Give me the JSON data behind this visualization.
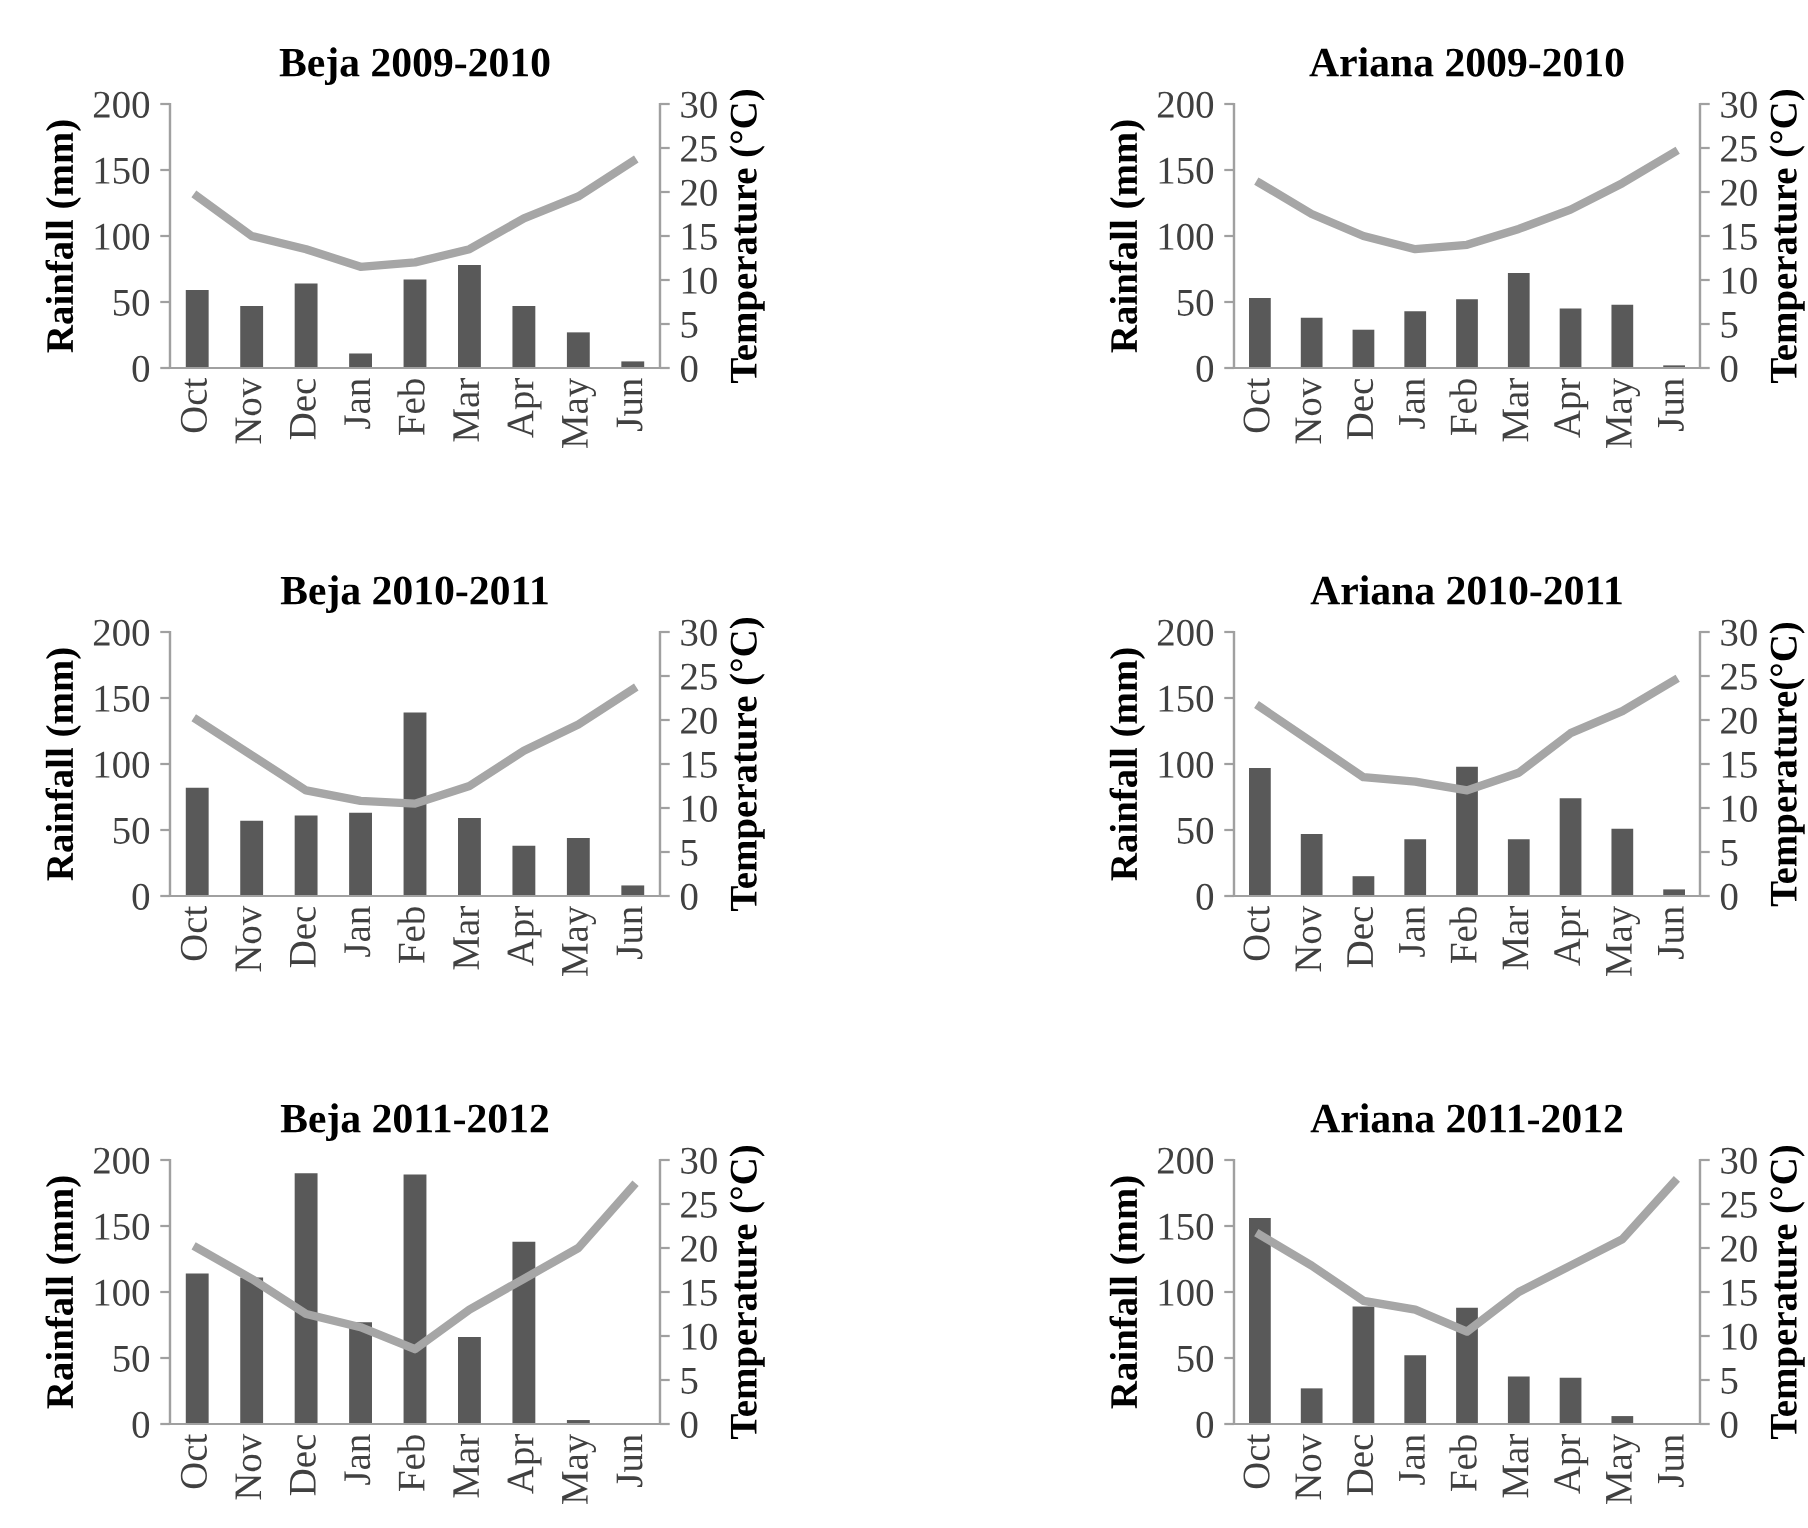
{
  "chart_data": [
    {
      "type": "bar",
      "title": "Beja 2009-2010",
      "ylabel": "Rainfall (mm)",
      "y2label": "Temperature (°C)",
      "categories": [
        "Oct",
        "Nov",
        "Dec",
        "Jan",
        "Feb",
        "Mar",
        "Apr",
        "May",
        "Jun"
      ],
      "ylim": [
        0,
        200
      ],
      "yticks": [
        0,
        50,
        100,
        150,
        200
      ],
      "y2lim": [
        0,
        30
      ],
      "y2ticks": [
        0,
        5,
        10,
        15,
        20,
        25,
        30
      ],
      "series": [
        {
          "color": "#595959",
          "values": [
            59,
            47,
            64,
            11,
            67,
            78,
            47,
            27,
            5
          ]
        },
        {
          "type": "line",
          "axis": "y2",
          "color": "#a6a6a6",
          "values": [
            19.5,
            15,
            13.5,
            11.5,
            12,
            13.5,
            17,
            19.5,
            23.5
          ]
        }
      ]
    },
    {
      "type": "bar",
      "title": "Ariana 2009-2010",
      "ylabel": "Rainfall (mm)",
      "y2label": "Temperature (°C)",
      "categories": [
        "Oct",
        "Nov",
        "Dec",
        "Jan",
        "Feb",
        "Mar",
        "Apr",
        "May",
        "Jun"
      ],
      "ylim": [
        0,
        200
      ],
      "yticks": [
        0,
        50,
        100,
        150,
        200
      ],
      "y2lim": [
        0,
        30
      ],
      "y2ticks": [
        0,
        5,
        10,
        15,
        20,
        25,
        30
      ],
      "series": [
        {
          "color": "#595959",
          "values": [
            53,
            38,
            29,
            43,
            52,
            72,
            45,
            48,
            2
          ]
        },
        {
          "type": "line",
          "axis": "y2",
          "color": "#a6a6a6",
          "values": [
            21,
            17.5,
            15,
            13.5,
            14,
            15.8,
            18,
            21,
            24.5
          ]
        }
      ]
    },
    {
      "type": "bar",
      "title": "Beja 2010-2011",
      "ylabel": "Rainfall (mm)",
      "y2label": "Temperature (°C)",
      "categories": [
        "Oct",
        "Nov",
        "Dec",
        "Jan",
        "Feb",
        "Mar",
        "Apr",
        "May",
        "Jun"
      ],
      "ylim": [
        0,
        200
      ],
      "yticks": [
        0,
        50,
        100,
        150,
        200
      ],
      "y2lim": [
        0,
        30
      ],
      "y2ticks": [
        0,
        5,
        10,
        15,
        20,
        25,
        30
      ],
      "series": [
        {
          "color": "#595959",
          "values": [
            82,
            57,
            61,
            63,
            139,
            59,
            38,
            44,
            8
          ]
        },
        {
          "type": "line",
          "axis": "y2",
          "color": "#a6a6a6",
          "values": [
            20,
            16,
            12,
            10.8,
            10.5,
            12.5,
            16.5,
            19.5,
            23.5
          ]
        }
      ]
    },
    {
      "type": "bar",
      "title": "Ariana 2010-2011",
      "ylabel": "Rainfall (mm)",
      "y2label": "Temperature(°C)",
      "categories": [
        "Oct",
        "Nov",
        "Dec",
        "Jan",
        "Feb",
        "Mar",
        "Apr",
        "May",
        "Jun"
      ],
      "ylim": [
        0,
        200
      ],
      "yticks": [
        0,
        50,
        100,
        150,
        200
      ],
      "y2lim": [
        0,
        30
      ],
      "y2ticks": [
        0,
        5,
        10,
        15,
        20,
        25,
        30
      ],
      "series": [
        {
          "color": "#595959",
          "values": [
            97,
            47,
            15,
            43,
            98,
            43,
            74,
            51,
            5
          ]
        },
        {
          "type": "line",
          "axis": "y2",
          "color": "#a6a6a6",
          "values": [
            21.5,
            17.5,
            13.5,
            13,
            12,
            14,
            18.5,
            21,
            24.5
          ]
        }
      ]
    },
    {
      "type": "bar",
      "title": "Beja 2011-2012",
      "ylabel": "Rainfall (mm)",
      "y2label": "Temperature (°C)",
      "categories": [
        "Oct",
        "Nov",
        "Dec",
        "Jan",
        "Feb",
        "Mar",
        "Apr",
        "May",
        "Jun"
      ],
      "ylim": [
        0,
        200
      ],
      "yticks": [
        0,
        50,
        100,
        150,
        200
      ],
      "y2lim": [
        0,
        30
      ],
      "y2ticks": [
        0,
        5,
        10,
        15,
        20,
        25,
        30
      ],
      "series": [
        {
          "color": "#595959",
          "values": [
            114,
            111,
            190,
            77,
            189,
            66,
            138,
            3,
            0
          ]
        },
        {
          "type": "line",
          "axis": "y2",
          "color": "#a6a6a6",
          "values": [
            20,
            16.5,
            12.5,
            11,
            8.5,
            13,
            16.5,
            20,
            27
          ]
        }
      ]
    },
    {
      "type": "bar",
      "title": "Ariana 2011-2012",
      "ylabel": "Rainfall (mm)",
      "y2label": "Temperature (°C)",
      "categories": [
        "Oct",
        "Nov",
        "Dec",
        "Jan",
        "Feb",
        "Mar",
        "Apr",
        "May",
        "Jun"
      ],
      "ylim": [
        0,
        200
      ],
      "yticks": [
        0,
        50,
        100,
        150,
        200
      ],
      "y2lim": [
        0,
        30
      ],
      "y2ticks": [
        0,
        5,
        10,
        15,
        20,
        25,
        30
      ],
      "series": [
        {
          "color": "#595959",
          "values": [
            156,
            27,
            89,
            52,
            88,
            36,
            35,
            6,
            0
          ]
        },
        {
          "type": "line",
          "axis": "y2",
          "color": "#a6a6a6",
          "values": [
            21.5,
            18,
            14,
            13,
            10.5,
            15,
            18,
            21,
            27.5
          ]
        }
      ]
    }
  ]
}
